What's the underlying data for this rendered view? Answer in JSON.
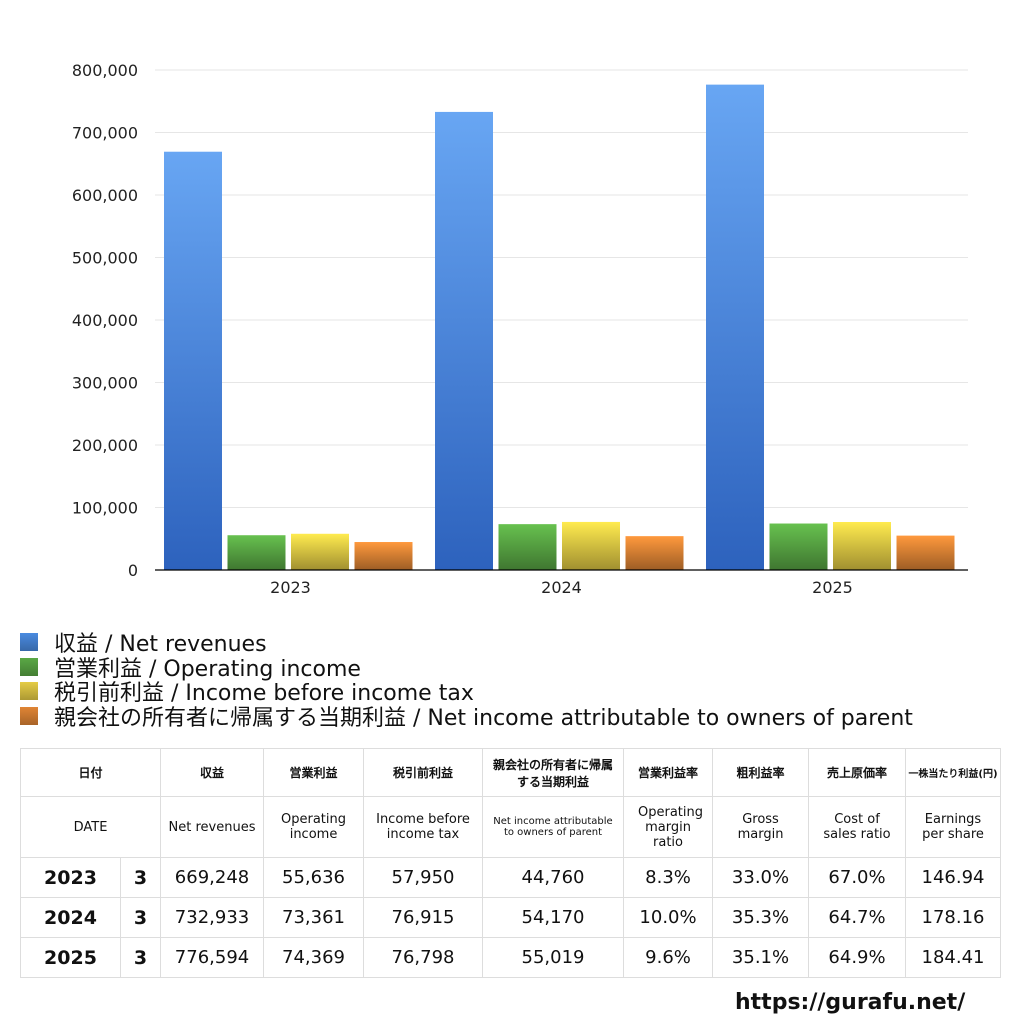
{
  "chart_data": {
    "type": "bar",
    "categories": [
      "2023",
      "2024",
      "2025"
    ],
    "ylim": [
      0,
      800000
    ],
    "yticks": [
      "0",
      "100,000",
      "200,000",
      "300,000",
      "400,000",
      "500,000",
      "600,000",
      "700,000",
      "800,000"
    ],
    "grid": true,
    "legend_placement": "bottom",
    "series": [
      {
        "name": "収益 / Net revenues",
        "values": [
          669248,
          732933,
          776594
        ],
        "color": "#4a8be0"
      },
      {
        "name": "営業利益 / Operating income",
        "values": [
          55636,
          73361,
          74369
        ],
        "color": "#5aa845"
      },
      {
        "name": "税引前利益 / Income before income tax",
        "values": [
          57950,
          76915,
          76798
        ],
        "color": "#e5cc45"
      },
      {
        "name": "親会社の所有者に帰属する当期利益 / Net income attributable to owners of parent",
        "values": [
          44760,
          54170,
          55019
        ],
        "color": "#e08535"
      }
    ]
  },
  "table": {
    "header_jp": [
      "日付",
      "収益",
      "営業利益",
      "税引前利益",
      "親会社の所有者に帰属する当期利益",
      "営業利益率",
      "粗利益率",
      "売上原価率",
      "一株当たり利益(円)"
    ],
    "header_en": [
      "DATE",
      "Net revenues",
      "Operating income",
      "Income before income tax",
      "Net income attributable to owners of parent",
      "Operating margin ratio",
      "Gross margin",
      "Cost of sales ratio",
      "Earnings per share"
    ],
    "rows": [
      [
        "2023",
        "3",
        "669,248",
        "55,636",
        "57,950",
        "44,760",
        "8.3%",
        "33.0%",
        "67.0%",
        "146.94"
      ],
      [
        "2024",
        "3",
        "732,933",
        "73,361",
        "76,915",
        "54,170",
        "10.0%",
        "35.3%",
        "64.7%",
        "178.16"
      ],
      [
        "2025",
        "3",
        "776,594",
        "74,369",
        "76,798",
        "55,019",
        "9.6%",
        "35.1%",
        "64.9%",
        "184.41"
      ]
    ]
  },
  "footer": "https://gurafu.net/"
}
